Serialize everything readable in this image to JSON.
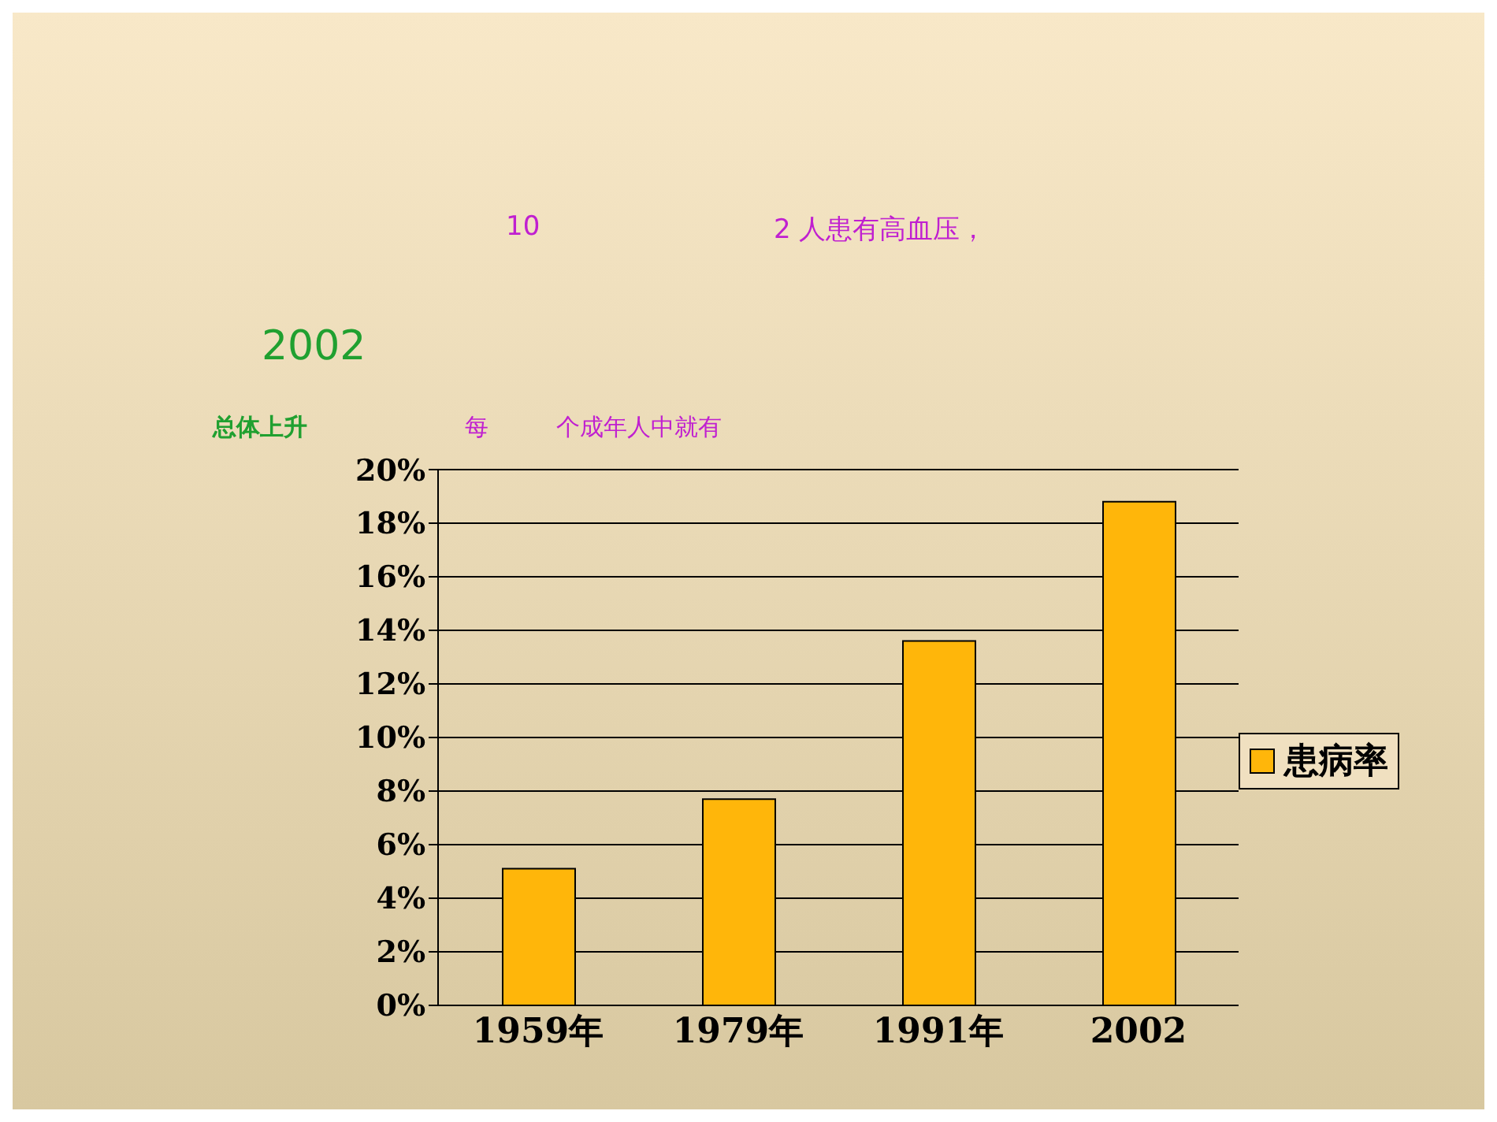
{
  "chart_data": {
    "type": "bar",
    "categories": [
      "1959年",
      "1979年",
      "1991年",
      "2002"
    ],
    "series": [
      {
        "name": "患病率",
        "color": "#ffb60a",
        "values": [
          5.1,
          7.7,
          13.6,
          18.8
        ]
      }
    ],
    "ylim": [
      0,
      20
    ],
    "yticks": [
      {
        "value": 0,
        "label": "0%"
      },
      {
        "value": 2,
        "label": "2%"
      },
      {
        "value": 4,
        "label": "4%"
      },
      {
        "value": 6,
        "label": "6%"
      },
      {
        "value": 8,
        "label": "8%"
      },
      {
        "value": 10,
        "label": "10%"
      },
      {
        "value": 12,
        "label": "12%"
      },
      {
        "value": 14,
        "label": "14%"
      },
      {
        "value": 16,
        "label": "16%"
      },
      {
        "value": 18,
        "label": "18%"
      },
      {
        "value": 20,
        "label": "20%"
      }
    ],
    "grid": "y",
    "legend": "right",
    "annotations": [
      "10",
      "2 人患有高血压，",
      "2002",
      "总体上升",
      "每",
      "个成年人中就有"
    ]
  }
}
